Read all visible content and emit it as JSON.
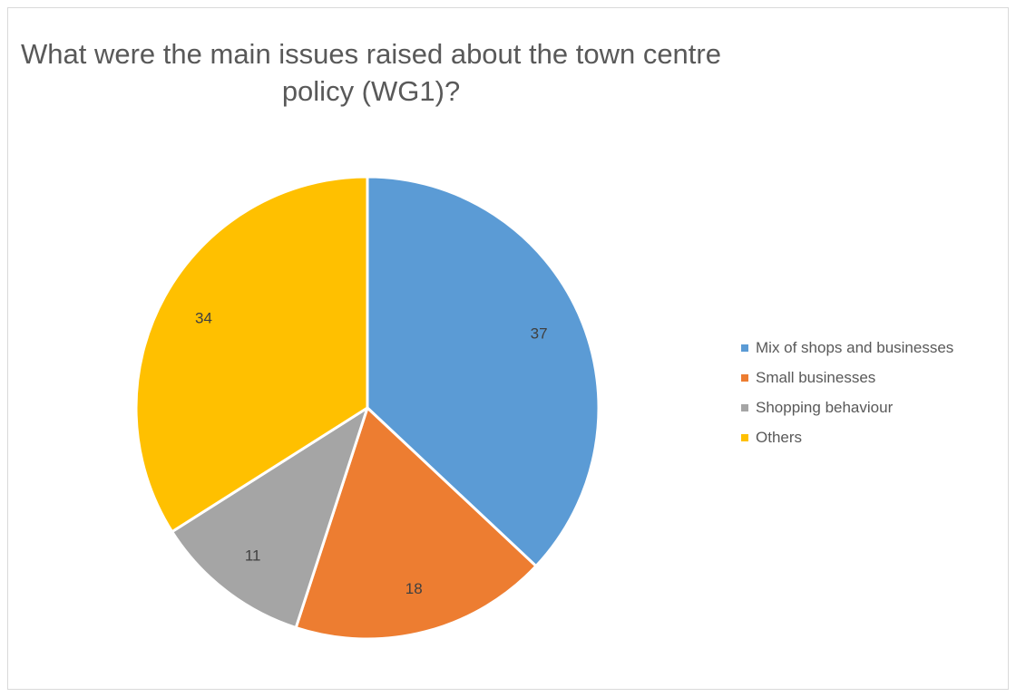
{
  "chart_data": {
    "type": "pie",
    "title": "What were the main issues raised about the town centre policy (WG1)?",
    "title_lines": [
      "What were the main issues raised about the town centre",
      "policy (WG1)?"
    ],
    "categories": [
      "Mix of shops and businesses",
      "Small businesses",
      "Shopping behaviour",
      "Others"
    ],
    "values": [
      37,
      18,
      11,
      34
    ],
    "colors": [
      "#5b9bd5",
      "#ed7d31",
      "#a5a5a5",
      "#ffc000"
    ],
    "data_labels": [
      "37",
      "18",
      "11",
      "34"
    ],
    "legend_position": "right",
    "start_angle": "12 o'clock",
    "direction": "clockwise"
  }
}
